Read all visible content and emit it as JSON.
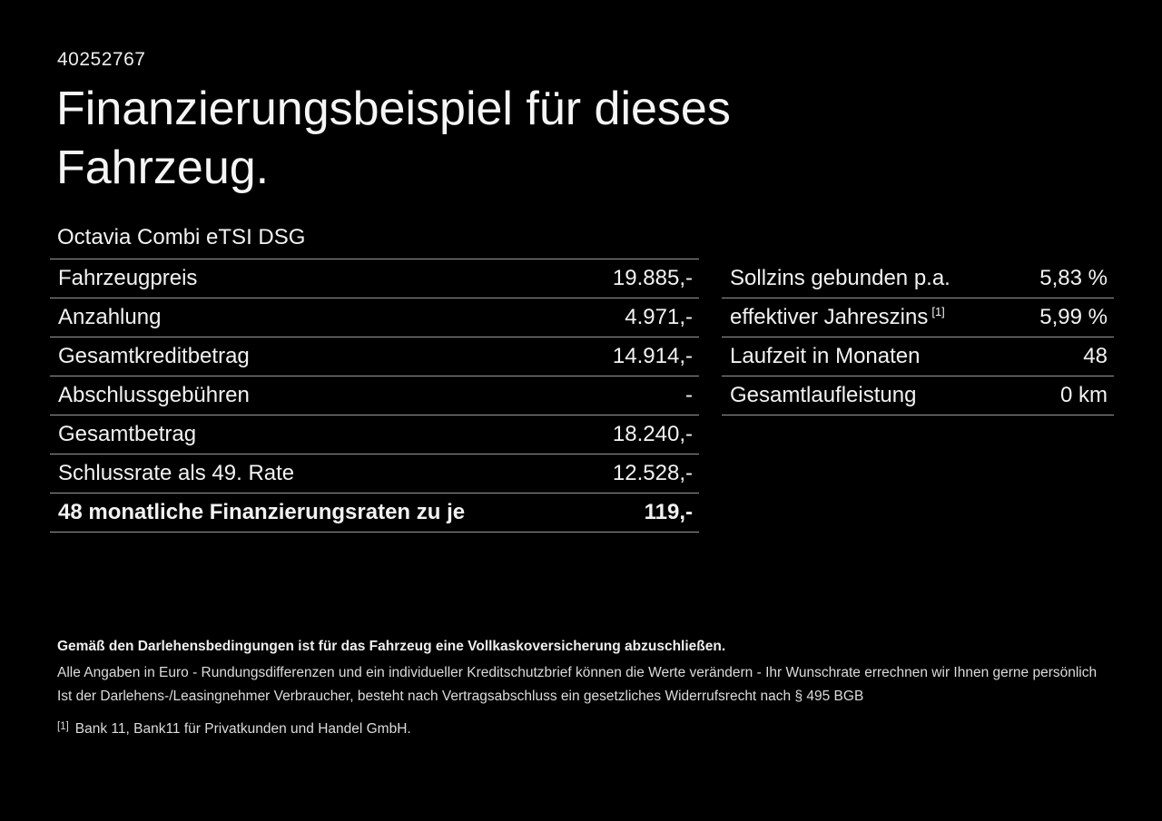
{
  "page": {
    "id_number": "40252767",
    "title": "Finanzierungsbeispiel für dieses Fahrzeug.",
    "model": "Octavia Combi eTSI DSG"
  },
  "finance_table": {
    "rows": [
      {
        "label": "Fahrzeugpreis",
        "value": "19.885,-"
      },
      {
        "label": "Anzahlung",
        "value": "4.971,-"
      },
      {
        "label": "Gesamtkreditbetrag",
        "value": "14.914,-"
      },
      {
        "label": "Abschlussgebühren",
        "value": "-"
      },
      {
        "label": "Gesamtbetrag",
        "value": "18.240,-"
      },
      {
        "label": "Schlussrate als 49. Rate",
        "value": "12.528,-"
      },
      {
        "label": "48 monatliche Finanzierungsraten zu je",
        "value": "119,-"
      }
    ]
  },
  "conditions_table": {
    "rows": [
      {
        "label": "Sollzins gebunden p.a.",
        "sup": "",
        "value": "5,83 %"
      },
      {
        "label": "effektiver Jahreszins",
        "sup": "[1]",
        "value": "5,99 %"
      },
      {
        "label": "Laufzeit in Monaten",
        "sup": "",
        "value": "48"
      },
      {
        "label": "Gesamtlaufleistung",
        "sup": "",
        "value": "0 km"
      }
    ]
  },
  "footer": {
    "insurance_note": "Gemäß den Darlehensbedingungen ist für das Fahrzeug eine Vollkaskoversicherung abzuschließen.",
    "rounding_note": "Alle Angaben in Euro - Rundungsdifferenzen und ein individueller Kreditschutzbrief können die Werte verändern - Ihr Wunschrate errechnen wir Ihnen gerne persönlich",
    "withdrawal_note": "Ist der Darlehens-/Leasingnehmer Verbraucher, besteht nach Vertragsabschluss ein gesetzliches Widerrufsrecht nach § 495 BGB",
    "footnote_marker": "[1]",
    "footnote_text": "Bank 11, Bank11 für Privatkunden und Handel GmbH."
  },
  "colors": {
    "background": "#000000",
    "text": "#f2f2f2",
    "border": "#9a9a9a"
  }
}
